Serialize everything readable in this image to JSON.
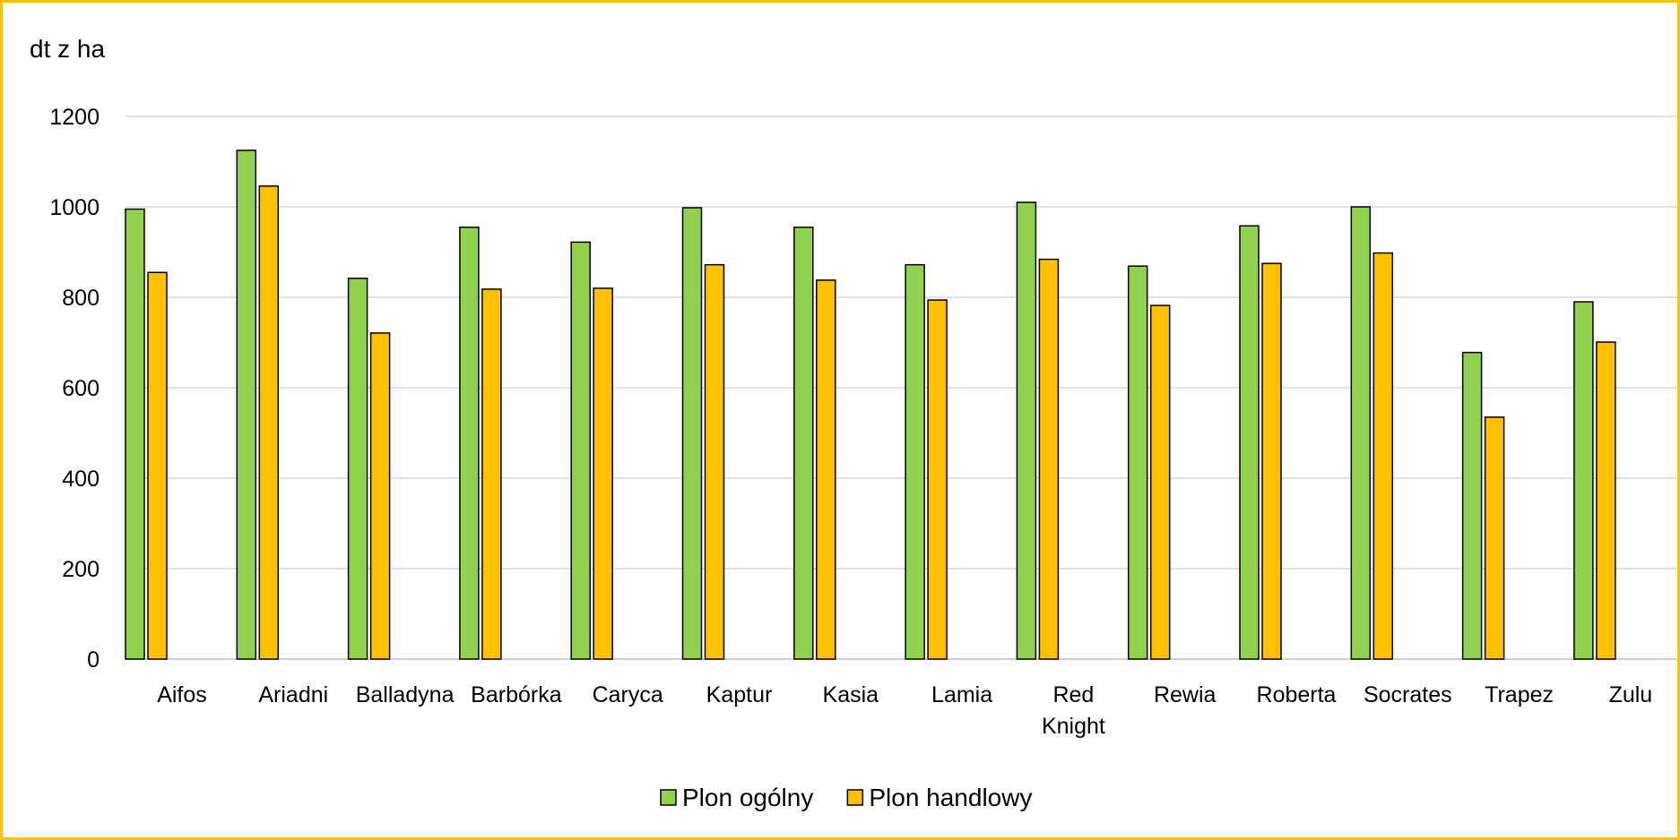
{
  "chart_data": {
    "type": "bar",
    "title": "",
    "xlabel": "",
    "ylabel": "dt z ha",
    "categories": [
      "Aifos",
      "Ariadni",
      "Balladyna",
      "Barbórka",
      "Caryca",
      "Kaptur",
      "Kasia",
      "Lamia",
      "Red Knight",
      "Rewia",
      "Roberta",
      "Socrates",
      "Trapez",
      "Zulu"
    ],
    "series": [
      {
        "name": "Plon ogólny",
        "color": "#92d050",
        "values": [
          995,
          1125,
          842,
          955,
          922,
          998,
          955,
          872,
          1010,
          869,
          958,
          1000,
          678,
          790
        ]
      },
      {
        "name": "Plon handlowy",
        "color": "#ffc000",
        "values": [
          855,
          1046,
          721,
          818,
          820,
          872,
          838,
          794,
          884,
          782,
          875,
          898,
          535,
          701
        ]
      }
    ],
    "ylim": [
      0,
      1200
    ],
    "yticks": [
      0,
      200,
      400,
      600,
      800,
      1000,
      1200
    ],
    "grid": true,
    "legend_position": "bottom",
    "frame_color": "#ffc000"
  }
}
